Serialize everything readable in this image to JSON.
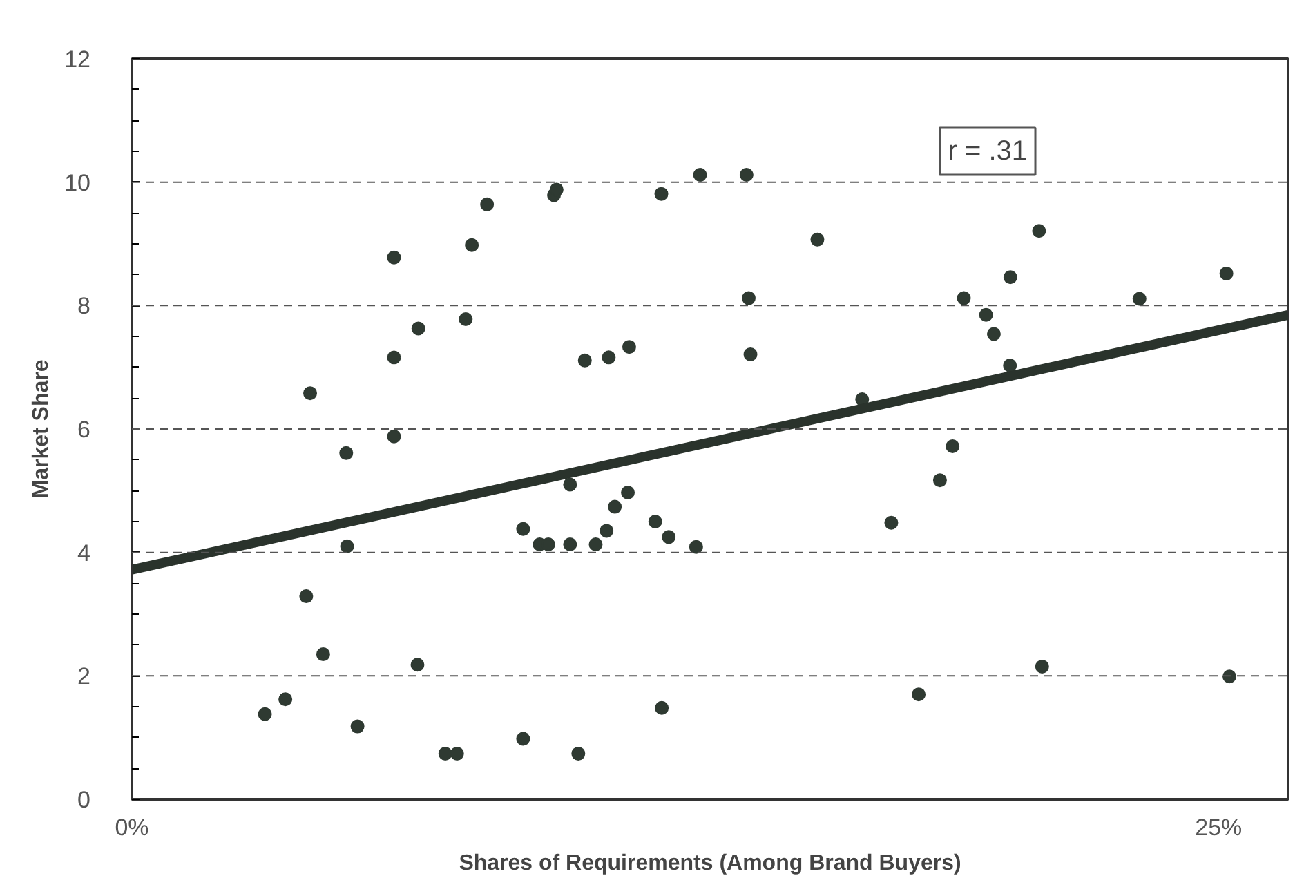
{
  "chart_data": {
    "type": "scatter",
    "xlabel": "Shares of Requirements (Among Brand Buyers)",
    "ylabel": "Market Share",
    "xlim": [
      0,
      26.6
    ],
    "ylim": [
      0,
      12
    ],
    "xticks": [
      {
        "value": 0,
        "label": "0%"
      },
      {
        "value": 25,
        "label": "25%"
      }
    ],
    "yticks": [
      0,
      2,
      4,
      6,
      8,
      10,
      12
    ],
    "grid": "y",
    "marker": "circle",
    "annotations": [
      "r = .31"
    ],
    "series": [
      {
        "color": "#2f3a32",
        "x": [
          4.1,
          6.03,
          6.03,
          6.03,
          6.59,
          7.68,
          7.82,
          8.17,
          9.71,
          9.77,
          10.42,
          10.97,
          11.44,
          12.18,
          13.07,
          14.14,
          15.77,
          14.19,
          14.23,
          19.14,
          19.65,
          19.83,
          20.21,
          20.87,
          23.18,
          25.18,
          20.2,
          16.8,
          4.93,
          4.95,
          4.01,
          4.4,
          3.06,
          3.53,
          5.19,
          6.57,
          7.21,
          7.48,
          9.0,
          10.27,
          9.0,
          9.38,
          9.58,
          10.08,
          10.08,
          10.67,
          10.92,
          11.11,
          11.41,
          12.04,
          12.35,
          12.98,
          12.19,
          17.47,
          18.59,
          18.88,
          18.1,
          20.94,
          25.25
        ],
        "values": [
          6.58,
          8.78,
          7.16,
          5.88,
          7.63,
          7.78,
          8.98,
          9.64,
          9.79,
          9.88,
          7.11,
          7.16,
          7.33,
          9.81,
          10.12,
          10.12,
          9.07,
          8.12,
          7.21,
          8.12,
          7.85,
          7.54,
          8.46,
          9.21,
          8.11,
          8.52,
          7.03,
          6.48,
          5.61,
          4.1,
          3.29,
          2.35,
          1.38,
          1.62,
          1.18,
          2.18,
          0.74,
          0.74,
          0.98,
          0.74,
          4.38,
          4.13,
          4.13,
          4.13,
          5.1,
          4.13,
          4.35,
          4.74,
          4.97,
          4.5,
          4.25,
          4.09,
          1.48,
          4.48,
          5.17,
          5.72,
          1.7,
          2.15,
          1.99
        ]
      },
      {
        "type": "line",
        "color": "#2a332c",
        "marker": "none",
        "x": [
          0,
          26.6
        ],
        "values": [
          3.72,
          7.85
        ]
      }
    ]
  }
}
